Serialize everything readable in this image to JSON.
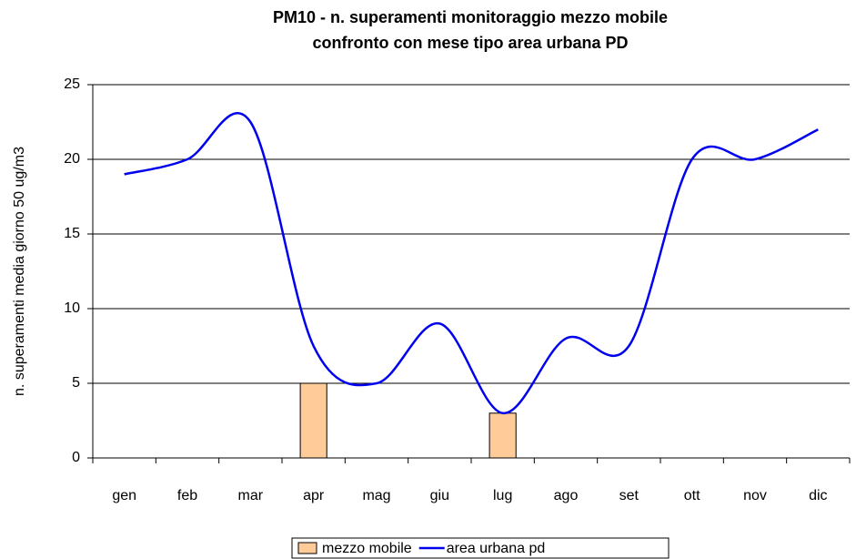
{
  "chart_data": {
    "type": "combo",
    "title": [
      "PM10 - n. superamenti monitoraggio mezzo mobile",
      "confronto con mese tipo area urbana PD"
    ],
    "y_label": "n. superamenti media giorno 50 ug/m3",
    "categories": [
      "gen",
      "feb",
      "mar",
      "apr",
      "mag",
      "giu",
      "lug",
      "ago",
      "set",
      "ott",
      "nov",
      "dic"
    ],
    "series": [
      {
        "name": "mezzo mobile",
        "type": "bar",
        "color": "#ffcc99",
        "values": [
          null,
          null,
          null,
          5,
          null,
          null,
          3,
          null,
          null,
          null,
          null,
          null
        ]
      },
      {
        "name": "area urbana pd",
        "type": "line",
        "color": "#0000ee",
        "values": [
          19,
          20,
          22.5,
          7.5,
          5,
          9,
          3,
          8,
          7.5,
          20,
          20,
          22
        ]
      }
    ],
    "ylim": [
      0,
      25
    ],
    "yticks": [
      0,
      5,
      10,
      15,
      20,
      25
    ],
    "grid": true,
    "legend": "bottom"
  }
}
